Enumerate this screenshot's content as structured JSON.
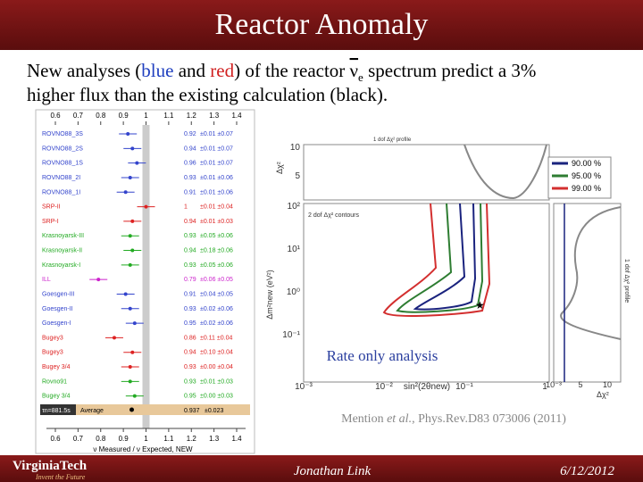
{
  "header": {
    "title": "Reactor Anomaly"
  },
  "body": {
    "segments": [
      "New analyses (",
      "blue",
      " and ",
      "red",
      ") of the reactor ",
      "ν",
      "e",
      " spectrum predict a 3%",
      "higher flux than the existing calculation (",
      "black",
      ")."
    ]
  },
  "left_figure": {
    "xlim": [
      0.6,
      1.4
    ],
    "xticks": [
      0.6,
      0.7,
      0.8,
      0.9,
      1,
      1.1,
      1.2,
      1.3,
      1.4
    ],
    "x_label": "ν Measured / ν Expected, NEW",
    "rows": [
      {
        "name": "ROVNO88_3S",
        "ratio": 0.92,
        "errors": "±0.01 ±0.07",
        "color": "#3344cc"
      },
      {
        "name": "ROVNO88_2S",
        "ratio": 0.94,
        "errors": "±0.01 ±0.07",
        "color": "#3344cc"
      },
      {
        "name": "ROVNO88_1S",
        "ratio": 0.96,
        "errors": "±0.01 ±0.07",
        "color": "#3344cc"
      },
      {
        "name": "ROVNO88_2I",
        "ratio": 0.93,
        "errors": "±0.01 ±0.06",
        "color": "#3344cc"
      },
      {
        "name": "ROVNO88_1I",
        "ratio": 0.91,
        "errors": "±0.01 ±0.06",
        "color": "#3344cc"
      },
      {
        "name": "SRP-II",
        "ratio": 1.0,
        "errors": "±0.01 ±0.04",
        "color": "#dd2222"
      },
      {
        "name": "SRP-I",
        "ratio": 0.94,
        "errors": "±0.01 ±0.03",
        "color": "#dd2222"
      },
      {
        "name": "Krasnoyarsk-III",
        "ratio": 0.93,
        "errors": "±0.05 ±0.06",
        "color": "#22aa22"
      },
      {
        "name": "Krasnoyarsk-II",
        "ratio": 0.94,
        "errors": "±0.18 ±0.06",
        "color": "#22aa22"
      },
      {
        "name": "Krasnoyarsk-I",
        "ratio": 0.93,
        "errors": "±0.05 ±0.06",
        "color": "#22aa22"
      },
      {
        "name": "ILL",
        "ratio": 0.79,
        "errors": "±0.06 ±0.05",
        "color": "#cc22cc"
      },
      {
        "name": "Goesgen-III",
        "ratio": 0.91,
        "errors": "±0.04 ±0.05",
        "color": "#3344cc"
      },
      {
        "name": "Goesgen-II",
        "ratio": 0.93,
        "errors": "±0.02 ±0.06",
        "color": "#3344cc"
      },
      {
        "name": "Goesgen-I",
        "ratio": 0.95,
        "errors": "±0.02 ±0.06",
        "color": "#3344cc"
      },
      {
        "name": "Bugey3",
        "ratio": 0.86,
        "errors": "±0.11 ±0.04",
        "color": "#dd2222"
      },
      {
        "name": "Bugey3",
        "ratio": 0.94,
        "errors": "±0.10 ±0.04",
        "color": "#dd2222"
      },
      {
        "name": "Bugey 3/4",
        "ratio": 0.93,
        "errors": "±0.00 ±0.04",
        "color": "#dd2222"
      },
      {
        "name": "Rovno91",
        "ratio": 0.93,
        "errors": "±0.01 ±0.03",
        "color": "#22aa22"
      },
      {
        "name": "Bugey 3/4",
        "ratio": 0.95,
        "errors": "±0.00 ±0.03",
        "color": "#22aa22"
      }
    ],
    "average": {
      "name": "Average",
      "ratio": 0.937,
      "errors": "±0.023",
      "tau": "τn=881.5s"
    }
  },
  "right_figure": {
    "top_panel_title": "1 dof Δχ² profile",
    "contour_label": "2 dof Δχ² contours",
    "side_label": "1 dof Δχ² profile",
    "y_label": "Δm²new (eV²)",
    "x_label": "sin²(2θnew)",
    "chi_label": "Δχ²",
    "y_tick_labels": [
      "10²",
      "10¹",
      "10⁰",
      "10⁻¹"
    ],
    "x_tick_labels": [
      "10⁻³",
      "10⁻²",
      "10⁻¹",
      "1"
    ],
    "top_tick_labels": [
      "10",
      "5"
    ],
    "side_tick_labels": [
      "10⁻³",
      "5",
      "10"
    ],
    "legend": [
      {
        "name": "90.00 %",
        "color": "#1a237e"
      },
      {
        "name": "95.00 %",
        "color": "#2e7d32"
      },
      {
        "name": "99.00 %",
        "color": "#d32f2f"
      }
    ]
  },
  "annotation": "Rate only analysis",
  "citation": {
    "before": "Mention ",
    "italic": "et al.",
    "after": ", Phys.Rev.D83 073006 (2011)"
  },
  "footer": {
    "logo": "VirginiaTech",
    "tagline": "Invent the Future",
    "author": "Jonathan Link",
    "date": "6/12/2012"
  }
}
